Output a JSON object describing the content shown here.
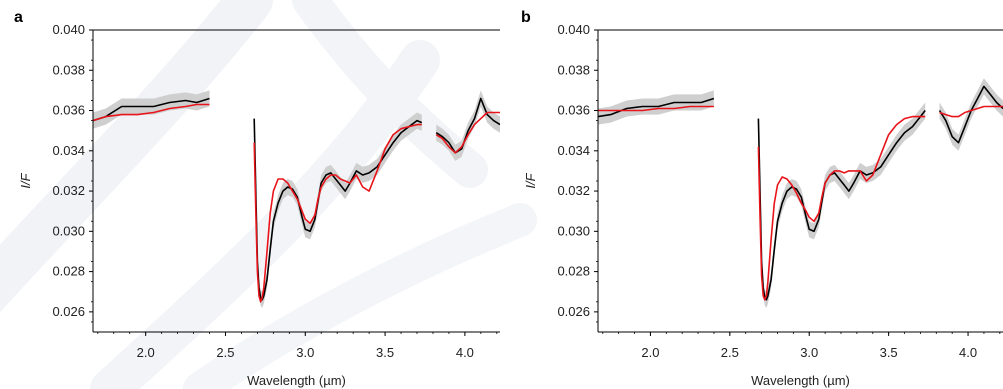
{
  "chart_data": [
    {
      "panel_label": "a",
      "type": "line",
      "xlabel": "Wavelength (µm)",
      "ylabel": "I/F",
      "xlim": [
        1.67,
        4.22
      ],
      "ylim": [
        0.025,
        0.04
      ],
      "xticks": [
        2.0,
        2.5,
        3.0,
        3.5,
        4.0
      ],
      "xtick_labels": [
        "2.0",
        "2.5",
        "3.0",
        "3.5",
        "4.0"
      ],
      "yticks": [
        0.026,
        0.028,
        0.03,
        0.032,
        0.034,
        0.036,
        0.038,
        0.04
      ],
      "ytick_labels": [
        "0.026",
        "0.028",
        "0.030",
        "0.032",
        "0.034",
        "0.036",
        "0.038",
        "0.040"
      ],
      "colors": {
        "observed": "#000000",
        "model": "#e8141a",
        "uncertainty": "#cfcfcf"
      },
      "series": [
        {
          "role": "observed",
          "segments": [
            {
              "x": [
                1.67,
                1.75,
                1.85,
                1.95,
                2.05,
                2.15,
                2.25,
                2.32,
                2.4
              ],
              "y": [
                0.0355,
                0.0357,
                0.0362,
                0.0362,
                0.0362,
                0.0364,
                0.0365,
                0.0364,
                0.0366
              ]
            },
            {
              "x": [
                2.68,
                2.69,
                2.7,
                2.71,
                2.72,
                2.73,
                2.74,
                2.76,
                2.78,
                2.8,
                2.83,
                2.86,
                2.89,
                2.92,
                2.95,
                2.98,
                3.0,
                3.03,
                3.06,
                3.08,
                3.1,
                3.13,
                3.16,
                3.19,
                3.22,
                3.25,
                3.28,
                3.32,
                3.36,
                3.4,
                3.45,
                3.5,
                3.55,
                3.6,
                3.65,
                3.7,
                3.73
              ],
              "y": [
                0.0356,
                0.032,
                0.0285,
                0.0272,
                0.0267,
                0.0266,
                0.0268,
                0.0276,
                0.0291,
                0.0305,
                0.0314,
                0.032,
                0.0322,
                0.0321,
                0.0317,
                0.0307,
                0.0301,
                0.03,
                0.0306,
                0.0315,
                0.0324,
                0.0328,
                0.0329,
                0.0326,
                0.0323,
                0.032,
                0.0324,
                0.033,
                0.0328,
                0.0329,
                0.0332,
                0.0338,
                0.0344,
                0.0349,
                0.0352,
                0.0355,
                0.0354
              ]
            },
            {
              "x": [
                3.82,
                3.86,
                3.9,
                3.94,
                3.98,
                4.02,
                4.06,
                4.1,
                4.14,
                4.18,
                4.22
              ],
              "y": [
                0.0349,
                0.0347,
                0.0344,
                0.0339,
                0.0341,
                0.035,
                0.0356,
                0.0366,
                0.0358,
                0.0355,
                0.0353
              ]
            }
          ]
        },
        {
          "role": "model",
          "segments": [
            {
              "x": [
                1.67,
                1.75,
                1.85,
                1.95,
                2.05,
                2.15,
                2.25,
                2.32,
                2.4
              ],
              "y": [
                0.0355,
                0.0357,
                0.0358,
                0.0358,
                0.0359,
                0.0361,
                0.0362,
                0.0363,
                0.0363
              ]
            },
            {
              "x": [
                2.68,
                2.69,
                2.7,
                2.71,
                2.72,
                2.73,
                2.74,
                2.76,
                2.78,
                2.8,
                2.83,
                2.86,
                2.89,
                2.92,
                2.95,
                2.98,
                3.0,
                3.03,
                3.06,
                3.08,
                3.1,
                3.13,
                3.16,
                3.19,
                3.22,
                3.25,
                3.28,
                3.32,
                3.36,
                3.4,
                3.45,
                3.5,
                3.55,
                3.6,
                3.65,
                3.7,
                3.73
              ],
              "y": [
                0.0344,
                0.031,
                0.028,
                0.0268,
                0.0265,
                0.0267,
                0.0272,
                0.029,
                0.0309,
                0.032,
                0.0326,
                0.0326,
                0.0324,
                0.032,
                0.0316,
                0.031,
                0.0306,
                0.0304,
                0.0308,
                0.0316,
                0.0322,
                0.0326,
                0.0328,
                0.0328,
                0.0326,
                0.0325,
                0.0324,
                0.0328,
                0.0322,
                0.032,
                0.033,
                0.0341,
                0.0348,
                0.0351,
                0.0352,
                0.0353,
                0.0353
              ]
            },
            {
              "x": [
                3.82,
                3.86,
                3.9,
                3.94,
                3.98,
                4.02,
                4.06,
                4.1,
                4.14,
                4.18,
                4.22
              ],
              "y": [
                0.0348,
                0.0346,
                0.0342,
                0.0339,
                0.0342,
                0.0348,
                0.0353,
                0.0356,
                0.0359,
                0.0359,
                0.0359
              ]
            }
          ]
        }
      ],
      "band_halfwidth": 0.0004
    },
    {
      "panel_label": "b",
      "type": "line",
      "xlabel": "Wavelength (µm)",
      "ylabel": "I/F",
      "xlim": [
        1.67,
        4.22
      ],
      "ylim": [
        0.025,
        0.04
      ],
      "xticks": [
        2.0,
        2.5,
        3.0,
        3.5,
        4.0
      ],
      "xtick_labels": [
        "2.0",
        "2.5",
        "3.0",
        "3.5",
        "4.0"
      ],
      "yticks": [
        0.026,
        0.028,
        0.03,
        0.032,
        0.034,
        0.036,
        0.038,
        0.04
      ],
      "ytick_labels": [
        "0.026",
        "0.028",
        "0.030",
        "0.032",
        "0.034",
        "0.036",
        "0.038",
        "0.040"
      ],
      "colors": {
        "observed": "#000000",
        "model": "#e8141a",
        "uncertainty": "#cfcfcf"
      },
      "series": [
        {
          "role": "observed",
          "segments": [
            {
              "x": [
                1.67,
                1.75,
                1.85,
                1.95,
                2.05,
                2.15,
                2.25,
                2.32,
                2.4
              ],
              "y": [
                0.0357,
                0.0358,
                0.0361,
                0.0362,
                0.0362,
                0.0364,
                0.0364,
                0.0364,
                0.0366
              ]
            },
            {
              "x": [
                2.68,
                2.69,
                2.7,
                2.71,
                2.72,
                2.73,
                2.74,
                2.76,
                2.78,
                2.8,
                2.83,
                2.86,
                2.89,
                2.92,
                2.95,
                2.98,
                3.0,
                3.03,
                3.06,
                3.08,
                3.1,
                3.13,
                3.16,
                3.19,
                3.22,
                3.25,
                3.28,
                3.32,
                3.36,
                3.4,
                3.45,
                3.5,
                3.55,
                3.6,
                3.65,
                3.7,
                3.73
              ],
              "y": [
                0.0356,
                0.032,
                0.0285,
                0.0272,
                0.0267,
                0.0266,
                0.0268,
                0.0276,
                0.0291,
                0.0305,
                0.0314,
                0.032,
                0.0322,
                0.0321,
                0.0317,
                0.0307,
                0.0301,
                0.03,
                0.0306,
                0.0315,
                0.0324,
                0.0328,
                0.0329,
                0.0326,
                0.0323,
                0.032,
                0.0324,
                0.033,
                0.0328,
                0.0329,
                0.0332,
                0.0338,
                0.0344,
                0.0349,
                0.0352,
                0.0357,
                0.036
              ]
            },
            {
              "x": [
                3.82,
                3.86,
                3.9,
                3.94,
                3.98,
                4.02,
                4.06,
                4.1,
                4.14,
                4.18,
                4.22
              ],
              "y": [
                0.036,
                0.0355,
                0.0347,
                0.0344,
                0.0352,
                0.036,
                0.0366,
                0.0372,
                0.0368,
                0.0364,
                0.0361
              ]
            }
          ]
        },
        {
          "role": "model",
          "segments": [
            {
              "x": [
                1.67,
                1.75,
                1.85,
                1.95,
                2.05,
                2.15,
                2.25,
                2.32,
                2.4
              ],
              "y": [
                0.036,
                0.036,
                0.036,
                0.036,
                0.0361,
                0.0361,
                0.0362,
                0.0362,
                0.0362
              ]
            },
            {
              "x": [
                2.68,
                2.69,
                2.7,
                2.71,
                2.72,
                2.73,
                2.74,
                2.76,
                2.78,
                2.8,
                2.83,
                2.86,
                2.89,
                2.92,
                2.95,
                2.98,
                3.0,
                3.03,
                3.06,
                3.08,
                3.1,
                3.13,
                3.16,
                3.19,
                3.22,
                3.25,
                3.28,
                3.32,
                3.36,
                3.4,
                3.45,
                3.5,
                3.55,
                3.6,
                3.65,
                3.7,
                3.73
              ],
              "y": [
                0.0342,
                0.0308,
                0.0278,
                0.0268,
                0.0266,
                0.0268,
                0.0275,
                0.0296,
                0.0314,
                0.0323,
                0.0327,
                0.0326,
                0.0323,
                0.0319,
                0.0314,
                0.031,
                0.0307,
                0.0305,
                0.0309,
                0.0317,
                0.0324,
                0.0328,
                0.033,
                0.033,
                0.0329,
                0.033,
                0.033,
                0.033,
                0.0325,
                0.0328,
                0.0338,
                0.0348,
                0.0353,
                0.0356,
                0.0357,
                0.0357,
                0.0357
              ]
            },
            {
              "x": [
                3.82,
                3.86,
                3.9,
                3.94,
                3.98,
                4.02,
                4.06,
                4.1,
                4.14,
                4.18,
                4.22
              ],
              "y": [
                0.0359,
                0.0358,
                0.0357,
                0.0357,
                0.0359,
                0.036,
                0.0361,
                0.0362,
                0.0362,
                0.0362,
                0.0362
              ]
            }
          ]
        }
      ],
      "band_halfwidth": 0.0004
    }
  ]
}
